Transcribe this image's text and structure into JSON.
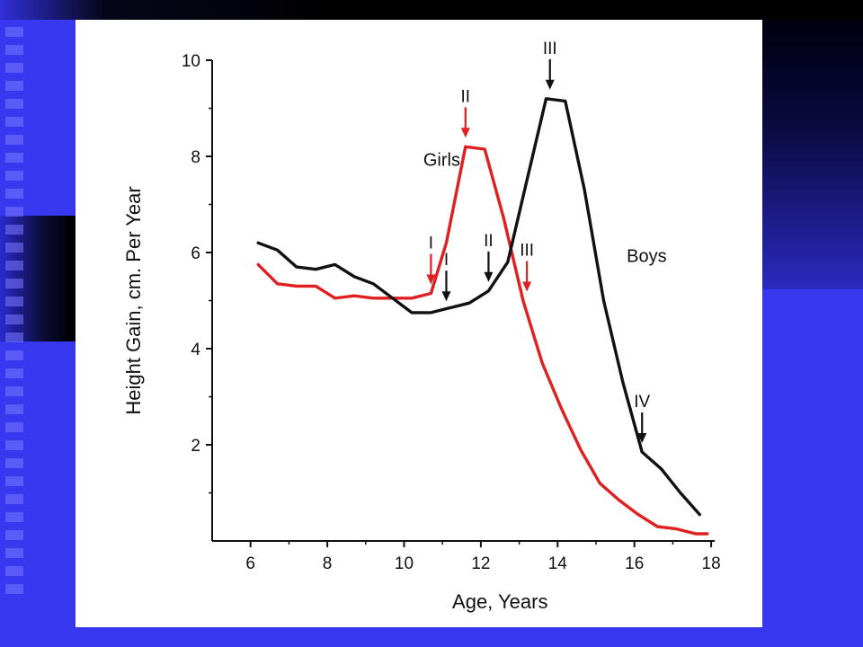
{
  "colors": {
    "background": "#3838f0",
    "card": "#ffffff",
    "girls": "#e02020",
    "boys": "#111111",
    "axis": "#111111"
  },
  "chart_data": {
    "type": "line",
    "title": "",
    "xlabel": "Age, Years",
    "ylabel": "Height Gain, cm. Per Year",
    "xlim": [
      5,
      18
    ],
    "ylim": [
      0,
      10
    ],
    "x_ticks": [
      6,
      8,
      10,
      12,
      14,
      16,
      18
    ],
    "y_ticks": [
      2,
      4,
      6,
      8,
      10
    ],
    "grid": false,
    "legend": "none",
    "series": [
      {
        "name": "Girls",
        "color": "#e02020",
        "x": [
          6.2,
          6.7,
          7.2,
          7.7,
          8.2,
          8.7,
          9.2,
          9.7,
          10.2,
          10.7,
          11.1,
          11.6,
          12.1,
          12.6,
          13.1,
          13.6,
          14.1,
          14.6,
          15.1,
          15.6,
          16.1,
          16.6,
          17.1,
          17.6,
          17.9
        ],
        "y": [
          5.75,
          5.35,
          5.3,
          5.3,
          5.05,
          5.1,
          5.05,
          5.05,
          5.05,
          5.15,
          6.2,
          8.2,
          8.15,
          6.7,
          5.0,
          3.7,
          2.75,
          1.9,
          1.2,
          0.85,
          0.55,
          0.3,
          0.25,
          0.15,
          0.15
        ]
      },
      {
        "name": "Boys",
        "color": "#111111",
        "x": [
          6.2,
          6.7,
          7.2,
          7.7,
          8.2,
          8.7,
          9.2,
          9.7,
          10.2,
          10.7,
          11.2,
          11.7,
          12.2,
          12.7,
          13.2,
          13.7,
          14.2,
          14.7,
          15.2,
          15.7,
          16.2,
          16.7,
          17.2,
          17.7
        ],
        "y": [
          6.2,
          6.05,
          5.7,
          5.65,
          5.75,
          5.5,
          5.35,
          5.05,
          4.75,
          4.75,
          4.85,
          4.95,
          5.2,
          5.8,
          7.5,
          9.2,
          9.15,
          7.3,
          5.0,
          3.3,
          1.85,
          1.5,
          1.0,
          0.55
        ]
      }
    ],
    "labels": [
      {
        "text": "Girls",
        "x": 10.5,
        "y": 7.8
      },
      {
        "text": "Boys",
        "x": 15.8,
        "y": 5.8
      }
    ],
    "annotations": [
      {
        "text": "I",
        "series": "Girls",
        "x": 10.7,
        "y": 5.15
      },
      {
        "text": "II",
        "series": "Girls",
        "x": 11.6,
        "y": 8.2
      },
      {
        "text": "III",
        "series": "Girls",
        "x": 13.2,
        "y": 5.0
      },
      {
        "text": "I",
        "series": "Boys",
        "x": 11.1,
        "y": 4.8
      },
      {
        "text": "II",
        "series": "Boys",
        "x": 12.2,
        "y": 5.2
      },
      {
        "text": "III",
        "series": "Boys",
        "x": 13.8,
        "y": 9.2
      },
      {
        "text": "IV",
        "series": "Boys",
        "x": 16.2,
        "y": 1.85
      }
    ]
  }
}
